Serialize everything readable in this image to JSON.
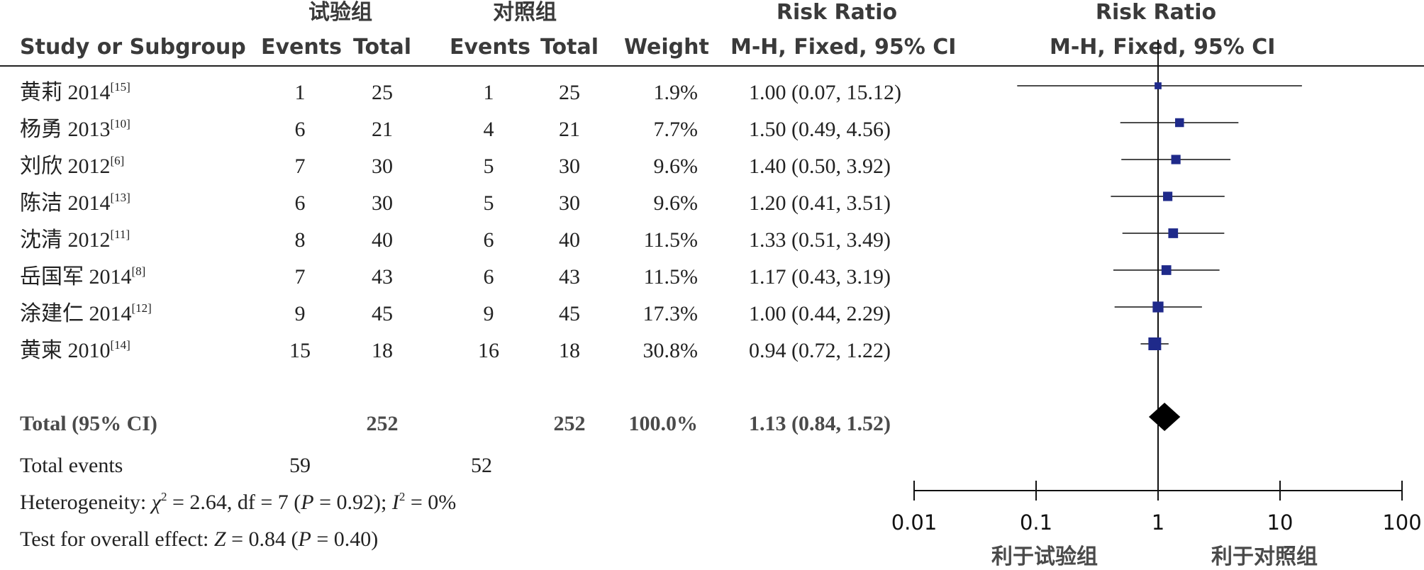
{
  "header": {
    "group_exp": "试验组",
    "group_ctl": "对照组",
    "rr_title": "Risk Ratio",
    "rr_plot_title": "Risk Ratio",
    "col_study": "Study or Subgroup",
    "col_events_exp": "Events",
    "col_total_exp": "Total",
    "col_events_ctl": "Events",
    "col_total_ctl": "Total",
    "col_weight": "Weight",
    "col_method": "M-H, Fixed, 95% CI",
    "col_plot_method": "M-H, Fixed, 95% CI"
  },
  "studies": [
    {
      "name": "黄莉 2014",
      "ref": "[15]",
      "e_events": "1",
      "e_total": "25",
      "c_events": "1",
      "c_total": "25",
      "weight": "1.9%",
      "ci_text": "1.00 (0.07, 15.12)"
    },
    {
      "name": "杨勇 2013",
      "ref": "[10]",
      "e_events": "6",
      "e_total": "21",
      "c_events": "4",
      "c_total": "21",
      "weight": "7.7%",
      "ci_text": "1.50 (0.49, 4.56)"
    },
    {
      "name": "刘欣 2012",
      "ref": "[6]",
      "e_events": "7",
      "e_total": "30",
      "c_events": "5",
      "c_total": "30",
      "weight": "9.6%",
      "ci_text": "1.40 (0.50, 3.92)"
    },
    {
      "name": "陈洁 2014",
      "ref": "[13]",
      "e_events": "6",
      "e_total": "30",
      "c_events": "5",
      "c_total": "30",
      "weight": "9.6%",
      "ci_text": "1.20 (0.41, 3.51)"
    },
    {
      "name": "沈清 2012",
      "ref": "[11]",
      "e_events": "8",
      "e_total": "40",
      "c_events": "6",
      "c_total": "40",
      "weight": "11.5%",
      "ci_text": "1.33 (0.51, 3.49)"
    },
    {
      "name": "岳国军 2014",
      "ref": "[8]",
      "e_events": "7",
      "e_total": "43",
      "c_events": "6",
      "c_total": "43",
      "weight": "11.5%",
      "ci_text": "1.17 (0.43, 3.19)"
    },
    {
      "name": "涂建仁 2014",
      "ref": "[12]",
      "e_events": "9",
      "e_total": "45",
      "c_events": "9",
      "c_total": "45",
      "weight": "17.3%",
      "ci_text": "1.00 (0.44, 2.29)"
    },
    {
      "name": "黄柬 2010",
      "ref": "[14]",
      "e_events": "15",
      "e_total": "18",
      "c_events": "16",
      "c_total": "18",
      "weight": "30.8%",
      "ci_text": "0.94 (0.72, 1.22)"
    }
  ],
  "total": {
    "label": "Total (95% CI)",
    "e_total": "252",
    "c_total": "252",
    "weight": "100.0%",
    "ci_text": "1.13 (0.84, 1.52)"
  },
  "footer": {
    "events_label": "Total events",
    "e_events": "59",
    "c_events": "52",
    "het_prefix": "Heterogeneity: ",
    "het_chi": "χ",
    "het_chi_sup": "2",
    "het_mid": " = 2.64, df = 7 (",
    "het_p": "P",
    "het_p_val": " = 0.92); ",
    "het_i": "I",
    "het_i_sup": "2",
    "het_i_val": " = 0%",
    "overall_prefix": "Test for overall effect: ",
    "overall_z": "Z",
    "overall_mid": " = 0.84 (",
    "overall_p": "P",
    "overall_end": " = 0.40)"
  },
  "axis": {
    "favours_left": "利于试验组",
    "favours_right": "利于对照组"
  },
  "colors": {
    "marker": "#1f2a8a",
    "diamond": "#000000",
    "line": "#111111"
  },
  "chart_data": {
    "type": "forest",
    "scale": "log",
    "xlim": [
      0.01,
      100
    ],
    "ticks": [
      0.01,
      0.1,
      1,
      10,
      100
    ],
    "tick_labels": [
      "0.01",
      "0.1",
      "1",
      "10",
      "100"
    ],
    "reference_line": 1,
    "studies": [
      {
        "name": "黄莉 2014",
        "rr": 1.0,
        "lo": 0.07,
        "hi": 15.12,
        "weight": 1.9
      },
      {
        "name": "杨勇 2013",
        "rr": 1.5,
        "lo": 0.49,
        "hi": 4.56,
        "weight": 7.7
      },
      {
        "name": "刘欣 2012",
        "rr": 1.4,
        "lo": 0.5,
        "hi": 3.92,
        "weight": 9.6
      },
      {
        "name": "陈洁 2014",
        "rr": 1.2,
        "lo": 0.41,
        "hi": 3.51,
        "weight": 9.6
      },
      {
        "name": "沈清 2012",
        "rr": 1.33,
        "lo": 0.51,
        "hi": 3.49,
        "weight": 11.5
      },
      {
        "name": "岳国军 2014",
        "rr": 1.17,
        "lo": 0.43,
        "hi": 3.19,
        "weight": 11.5
      },
      {
        "name": "涂建仁 2014",
        "rr": 1.0,
        "lo": 0.44,
        "hi": 2.29,
        "weight": 17.3
      },
      {
        "name": "黄柬 2010",
        "rr": 0.94,
        "lo": 0.72,
        "hi": 1.22,
        "weight": 30.8
      }
    ],
    "pooled": {
      "rr": 1.13,
      "lo": 0.84,
      "hi": 1.52,
      "weight": 100.0
    }
  }
}
